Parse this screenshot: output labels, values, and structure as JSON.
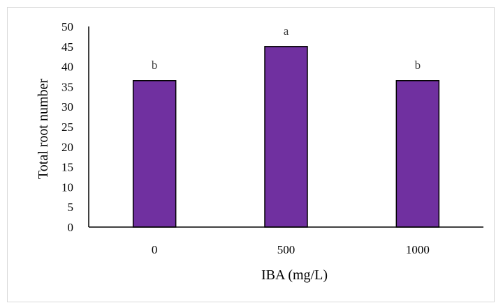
{
  "chart_data": {
    "type": "bar",
    "categories": [
      "0",
      "500",
      "1000"
    ],
    "values": [
      36.5,
      45,
      36.5
    ],
    "data_labels": [
      "b",
      "a",
      "b"
    ],
    "xlabel": "IBA (mg/L)",
    "ylabel": "Total root number",
    "ylim": [
      0,
      50
    ],
    "yticks": [
      "0",
      "5",
      "10",
      "15",
      "20",
      "25",
      "30",
      "35",
      "40",
      "45",
      "50"
    ],
    "grid": false,
    "legend": "none",
    "bar_color": "#7030a0",
    "bar_edge_color": "#000000"
  }
}
